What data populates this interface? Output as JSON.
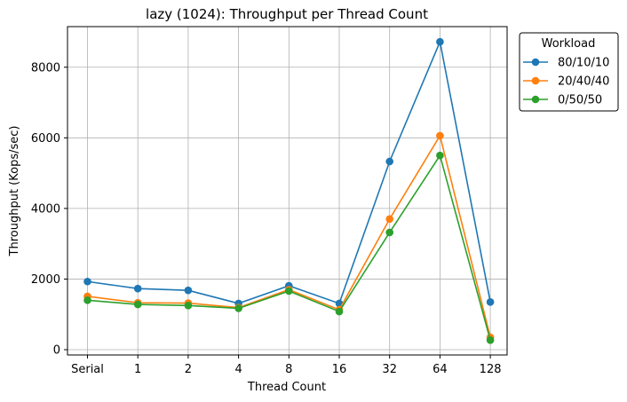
{
  "chart_data": {
    "type": "line",
    "title": "lazy (1024): Throughput per Thread Count",
    "xlabel": "Thread Count",
    "ylabel": "Throughput (Kops/sec)",
    "categories": [
      "Serial",
      "1",
      "2",
      "4",
      "8",
      "16",
      "32",
      "64",
      "128"
    ],
    "ylim": [
      -150,
      9150
    ],
    "yticks": [
      0,
      2000,
      4000,
      6000,
      8000
    ],
    "grid": true,
    "legend": {
      "title": "Workload",
      "placement": "outside-top-right"
    },
    "series": [
      {
        "name": "80/10/10",
        "color": "#1f77b4",
        "values": [
          1930,
          1730,
          1680,
          1310,
          1810,
          1310,
          5330,
          8720,
          1350
        ]
      },
      {
        "name": "20/40/40",
        "color": "#ff7f0e",
        "values": [
          1510,
          1330,
          1320,
          1190,
          1700,
          1130,
          3700,
          6060,
          350
        ]
      },
      {
        "name": "0/50/50",
        "color": "#2ca02c",
        "values": [
          1400,
          1280,
          1250,
          1170,
          1660,
          1080,
          3320,
          5500,
          270
        ]
      }
    ]
  }
}
